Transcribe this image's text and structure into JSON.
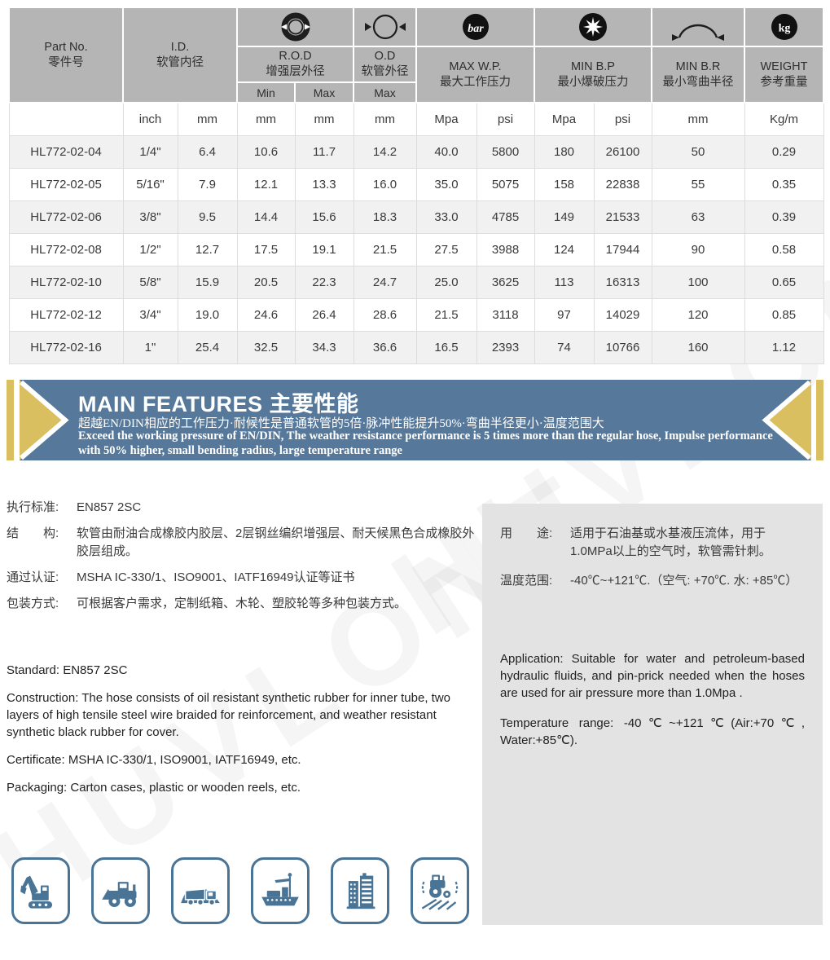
{
  "table": {
    "header": {
      "part": {
        "line1": "Part No.",
        "line2": "零件号"
      },
      "id": {
        "line1": "I.D.",
        "line2": "软管内径"
      },
      "rod": {
        "line1": "R.O.D",
        "line2": "增强层外径",
        "sub_min": "Min",
        "sub_max": "Max",
        "icon": "reinforcement-outer-diameter-ring-icon"
      },
      "od": {
        "line1": "O.D",
        "line2": "软管外径",
        "sub_max": "Max",
        "icon": "outer-diameter-icon"
      },
      "wp": {
        "line1": "MAX W.P.",
        "line2": "最大工作压力",
        "icon": "bar-pressure-icon"
      },
      "bp": {
        "line1": "MIN B.P",
        "line2": "最小爆破压力",
        "icon": "burst-pressure-icon"
      },
      "br": {
        "line1": "MIN B.R",
        "line2": "最小弯曲半径",
        "icon": "bend-radius-icon"
      },
      "weight": {
        "line1": "WEIGHT",
        "line2": "参考重量",
        "icon": "kg-weight-icon"
      },
      "bar_icon_text": "bar",
      "kg_icon_text": "kg"
    },
    "units": [
      "",
      "inch",
      "mm",
      "mm",
      "mm",
      "mm",
      "Mpa",
      "psi",
      "Mpa",
      "psi",
      "mm",
      "Kg/m"
    ],
    "rows": [
      [
        "HL772-02-04",
        "1/4\"",
        "6.4",
        "10.6",
        "11.7",
        "14.2",
        "40.0",
        "5800",
        "180",
        "26100",
        "50",
        "0.29"
      ],
      [
        "HL772-02-05",
        "5/16\"",
        "7.9",
        "12.1",
        "13.3",
        "16.0",
        "35.0",
        "5075",
        "158",
        "22838",
        "55",
        "0.35"
      ],
      [
        "HL772-02-06",
        "3/8\"",
        "9.5",
        "14.4",
        "15.6",
        "18.3",
        "33.0",
        "4785",
        "149",
        "21533",
        "63",
        "0.39"
      ],
      [
        "HL772-02-08",
        "1/2\"",
        "12.7",
        "17.5",
        "19.1",
        "21.5",
        "27.5",
        "3988",
        "124",
        "17944",
        "90",
        "0.58"
      ],
      [
        "HL772-02-10",
        "5/8\"",
        "15.9",
        "20.5",
        "22.3",
        "24.7",
        "25.0",
        "3625",
        "113",
        "16313",
        "100",
        "0.65"
      ],
      [
        "HL772-02-12",
        "3/4\"",
        "19.0",
        "24.6",
        "26.4",
        "28.6",
        "21.5",
        "3118",
        "97",
        "14029",
        "120",
        "0.85"
      ],
      [
        "HL772-02-16",
        "1\"",
        "25.4",
        "32.5",
        "34.3",
        "36.6",
        "16.5",
        "2393",
        "74",
        "10766",
        "160",
        "1.12"
      ]
    ]
  },
  "banner": {
    "title_en": "MAIN FEATURES",
    "title_zh": "主要性能",
    "line_zh": "超越EN/DIN相应的工作压力·耐候性是普通软管的5倍·脉冲性能提升50%·弯曲半径更小·温度范围大",
    "line_en": "Exceed the working pressure of EN/DIN, The weather resistance performance is 5 times more than the regular hose, Impulse performance with 50% higher, small bending radius, large temperature range",
    "colors": {
      "blue": "#56799b",
      "gold": "#d9bf5f"
    }
  },
  "specs_zh": [
    {
      "label": "执行标准:",
      "text": "EN857 2SC"
    },
    {
      "label": "结　　构:",
      "text": "软管由耐油合成橡胶内胶层、2层钢丝编织增强层、耐天候黑色合成橡胶外胶层组成。"
    },
    {
      "label": "通过认证:",
      "text": "MSHA IC-330/1、ISO9001、IATF16949认证等证书"
    },
    {
      "label": "包装方式:",
      "text": "可根据客户需求，定制纸箱、木轮、塑胶轮等多种包装方式。"
    }
  ],
  "specs_en": [
    "Standard: EN857 2SC",
    "Construction:  The hose consists of oil resistant synthetic rubber for inner tube, two layers of high tensile steel wire braided for reinforcement, and weather resistant synthetic black rubber for cover.",
    "Certificate: MSHA IC-330/1, ISO9001, IATF16949,  etc.",
    "Packaging: Carton cases, plastic or wooden reels, etc."
  ],
  "usage_zh": [
    {
      "label": "用　　途:",
      "text": "适用于石油基或水基液压流体，用于1.0MPa以上的空气时，软管需针刺。"
    },
    {
      "label": "温度范围:",
      "text": "-40℃~+121℃.（空气: +70℃. 水: +85℃）"
    }
  ],
  "usage_en": [
    "Application: Suitable for water and petroleum-based hydraulic fluids, and pin-prick needed when the hoses are used for air pressure more than 1.0Mpa .",
    "Temperature range: -40℃~+121℃(Air:+70℃, Water:+85℃)."
  ],
  "app_icons": [
    "excavator-icon",
    "wheel-loader-icon",
    "mining-truck-icon",
    "ship-icon",
    "building-icon",
    "tractor-icon"
  ],
  "watermark": "HUVLONE"
}
